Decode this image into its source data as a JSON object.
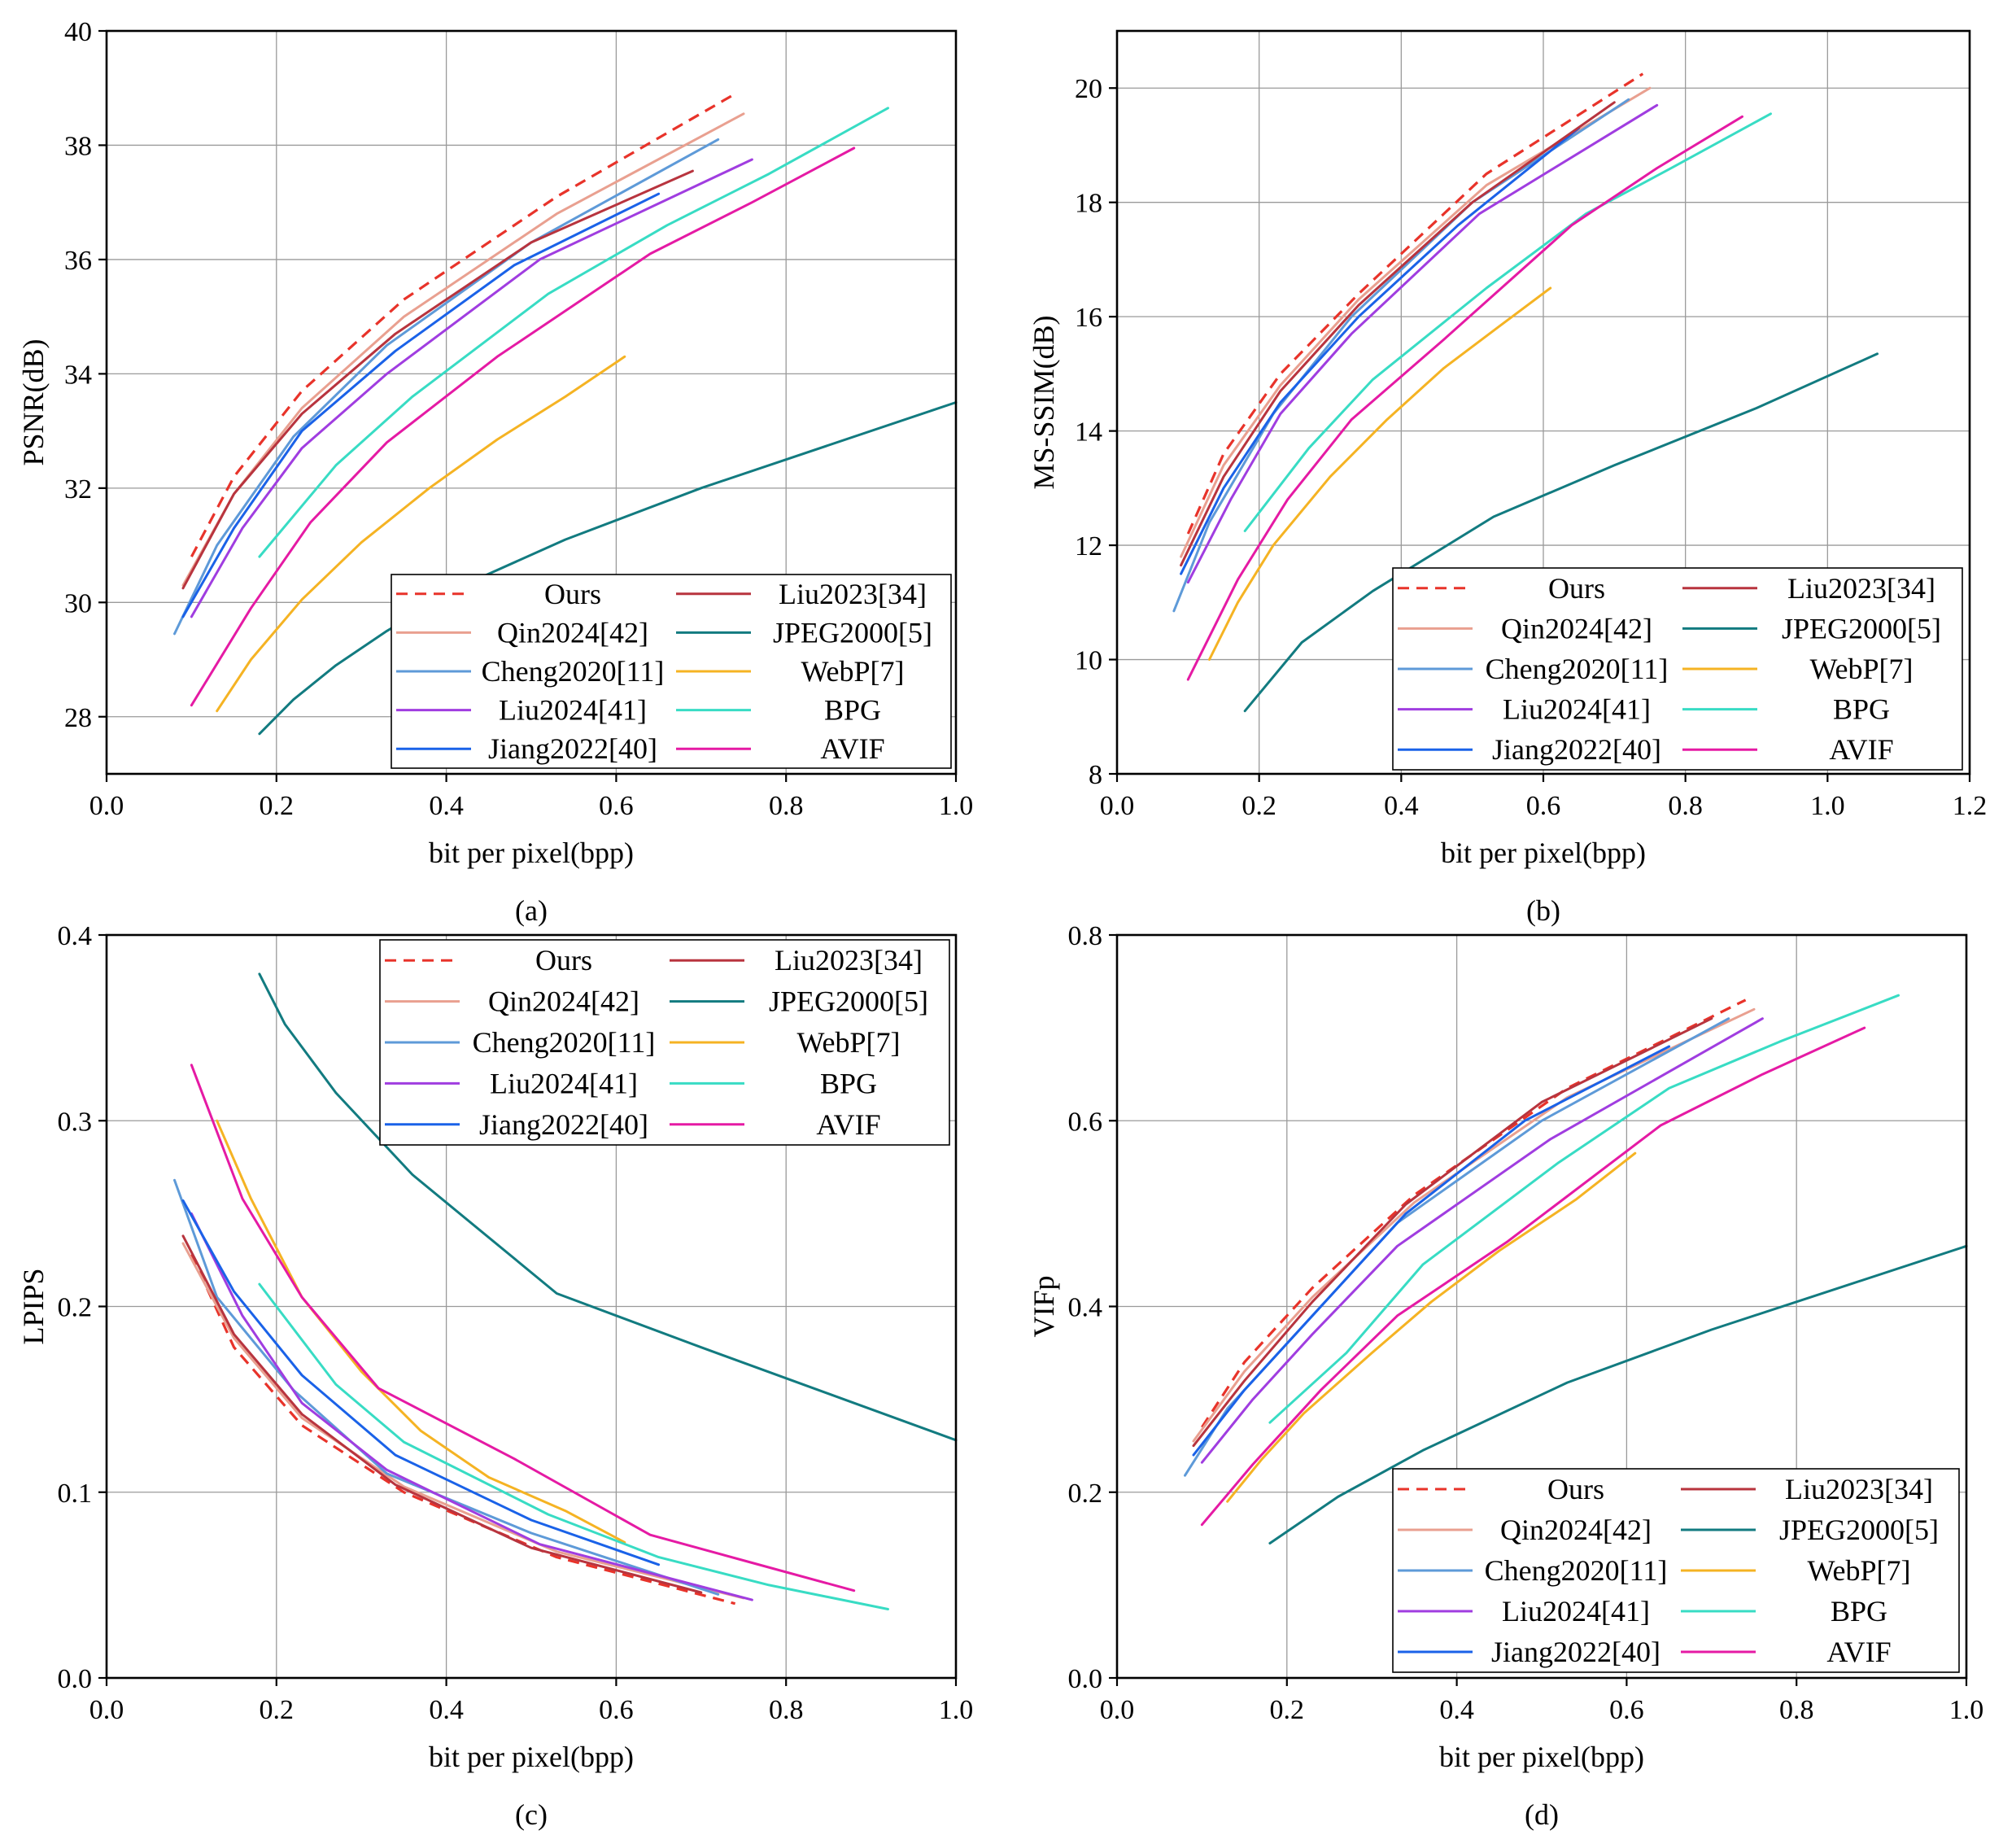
{
  "colors": {
    "Ours": "#e8332a",
    "Liu2023[34]": "#b8343e",
    "Qin2024[42]": "#e9a090",
    "JPEG2000[5]": "#127b80",
    "Cheng2020[11]": "#5e9ad8",
    "WebP[7]": "#f5b323",
    "Liu2024[41]": "#a03de0",
    "BPG": "#38dcc4",
    "Jiang2022[40]": "#1a62e8",
    "AVIF": "#e51aa4"
  },
  "chart_data": [
    {
      "id": "a",
      "type": "line",
      "panel_label": "(a)",
      "xlabel": "bit per pixel(bpp)",
      "ylabel": "PSNR(dB)",
      "xlim": [
        0.0,
        1.0
      ],
      "ylim": [
        27.0,
        40.0
      ],
      "xticks": [
        "0.0",
        "0.2",
        "0.4",
        "0.6",
        "0.8",
        "1.0"
      ],
      "yticks": [
        "28",
        "30",
        "32",
        "34",
        "36",
        "38",
        "40"
      ],
      "xtick_values": [
        0.0,
        0.2,
        0.4,
        0.6,
        0.8,
        1.0
      ],
      "ytick_values": [
        28,
        30,
        32,
        34,
        36,
        38,
        40
      ],
      "legend_position": "bottom-right",
      "series": [
        {
          "name": "Ours",
          "x": [
            0.1,
            0.15,
            0.23,
            0.35,
            0.53,
            0.74
          ],
          "y": [
            30.8,
            32.2,
            33.7,
            35.3,
            37.1,
            38.9
          ]
        },
        {
          "name": "Qin2024[42]",
          "x": [
            0.09,
            0.15,
            0.23,
            0.35,
            0.53,
            0.75
          ],
          "y": [
            30.3,
            31.9,
            33.4,
            35.0,
            36.8,
            38.55
          ]
        },
        {
          "name": "Cheng2020[11]",
          "x": [
            0.08,
            0.13,
            0.22,
            0.33,
            0.5,
            0.72
          ],
          "y": [
            29.45,
            31.0,
            32.9,
            34.5,
            36.3,
            38.1
          ]
        },
        {
          "name": "Liu2024[41]",
          "x": [
            0.1,
            0.16,
            0.23,
            0.33,
            0.51,
            0.76
          ],
          "y": [
            29.75,
            31.3,
            32.7,
            34.0,
            36.0,
            37.75
          ]
        },
        {
          "name": "Jiang2022[40]",
          "x": [
            0.09,
            0.15,
            0.23,
            0.34,
            0.48,
            0.65
          ],
          "y": [
            29.75,
            31.3,
            33.0,
            34.4,
            35.9,
            37.15
          ]
        },
        {
          "name": "Liu2023[34]",
          "x": [
            0.09,
            0.15,
            0.23,
            0.34,
            0.5,
            0.69
          ],
          "y": [
            30.25,
            31.9,
            33.3,
            34.7,
            36.3,
            37.55
          ]
        },
        {
          "name": "JPEG2000[5]",
          "x": [
            0.18,
            0.22,
            0.27,
            0.33,
            0.42,
            0.54,
            0.7,
            1.0
          ],
          "y": [
            27.7,
            28.3,
            28.9,
            29.5,
            30.3,
            31.1,
            32.0,
            33.5
          ]
        },
        {
          "name": "WebP[7]",
          "x": [
            0.13,
            0.17,
            0.23,
            0.3,
            0.38,
            0.46,
            0.54,
            0.61
          ],
          "y": [
            28.1,
            29.0,
            30.05,
            31.05,
            32.0,
            32.85,
            33.6,
            34.3
          ]
        },
        {
          "name": "BPG",
          "x": [
            0.18,
            0.27,
            0.36,
            0.52,
            0.66,
            0.78,
            0.92
          ],
          "y": [
            30.8,
            32.4,
            33.6,
            35.4,
            36.6,
            37.5,
            38.65
          ]
        },
        {
          "name": "AVIF",
          "x": [
            0.1,
            0.17,
            0.24,
            0.33,
            0.46,
            0.64,
            0.76,
            0.88
          ],
          "y": [
            28.2,
            29.9,
            31.4,
            32.8,
            34.3,
            36.1,
            37.0,
            37.95
          ]
        }
      ]
    },
    {
      "id": "b",
      "type": "line",
      "panel_label": "(b)",
      "xlabel": "bit per pixel(bpp)",
      "ylabel": "MS-SSIM(dB)",
      "xlim": [
        0.0,
        1.2
      ],
      "ylim": [
        8.0,
        21.0
      ],
      "xticks": [
        "0.0",
        "0.2",
        "0.4",
        "0.6",
        "0.8",
        "1.0",
        "1.2"
      ],
      "yticks": [
        "8",
        "10",
        "12",
        "14",
        "16",
        "18",
        "20"
      ],
      "xtick_values": [
        0.0,
        0.2,
        0.4,
        0.6,
        0.8,
        1.0,
        1.2
      ],
      "ytick_values": [
        8,
        10,
        12,
        14,
        16,
        18,
        20
      ],
      "legend_position": "bottom-right",
      "series": [
        {
          "name": "Ours",
          "x": [
            0.1,
            0.15,
            0.23,
            0.34,
            0.52,
            0.74
          ],
          "y": [
            12.2,
            13.6,
            15.0,
            16.4,
            18.5,
            20.25
          ]
        },
        {
          "name": "Qin2024[42]",
          "x": [
            0.09,
            0.15,
            0.23,
            0.34,
            0.52,
            0.75
          ],
          "y": [
            11.8,
            13.4,
            14.8,
            16.3,
            18.3,
            20.0
          ]
        },
        {
          "name": "Cheng2020[11]",
          "x": [
            0.08,
            0.13,
            0.22,
            0.33,
            0.5,
            0.72
          ],
          "y": [
            10.85,
            12.4,
            14.3,
            16.0,
            18.0,
            19.8
          ]
        },
        {
          "name": "Liu2024[41]",
          "x": [
            0.1,
            0.16,
            0.23,
            0.33,
            0.51,
            0.76
          ],
          "y": [
            11.35,
            12.8,
            14.3,
            15.7,
            17.8,
            19.7
          ]
        },
        {
          "name": "Jiang2022[40]",
          "x": [
            0.09,
            0.15,
            0.23,
            0.34,
            0.48,
            0.65
          ],
          "y": [
            11.5,
            13.0,
            14.5,
            16.0,
            17.6,
            19.3
          ]
        },
        {
          "name": "Liu2023[34]",
          "x": [
            0.09,
            0.15,
            0.23,
            0.34,
            0.5,
            0.7
          ],
          "y": [
            11.65,
            13.2,
            14.7,
            16.2,
            18.0,
            19.75
          ]
        },
        {
          "name": "JPEG2000[5]",
          "x": [
            0.18,
            0.26,
            0.36,
            0.53,
            0.7,
            0.9,
            1.07
          ],
          "y": [
            9.1,
            10.3,
            11.2,
            12.5,
            13.4,
            14.4,
            15.35
          ]
        },
        {
          "name": "WebP[7]",
          "x": [
            0.13,
            0.17,
            0.22,
            0.3,
            0.38,
            0.46,
            0.54,
            0.61
          ],
          "y": [
            10.0,
            11.0,
            12.0,
            13.2,
            14.2,
            15.1,
            15.85,
            16.5
          ]
        },
        {
          "name": "BPG",
          "x": [
            0.18,
            0.27,
            0.36,
            0.52,
            0.66,
            0.78,
            0.92
          ],
          "y": [
            12.25,
            13.7,
            14.9,
            16.5,
            17.8,
            18.6,
            19.55
          ]
        },
        {
          "name": "AVIF",
          "x": [
            0.1,
            0.17,
            0.24,
            0.33,
            0.46,
            0.64,
            0.76,
            0.88
          ],
          "y": [
            9.65,
            11.4,
            12.8,
            14.2,
            15.6,
            17.6,
            18.6,
            19.5
          ]
        }
      ]
    },
    {
      "id": "c",
      "type": "line",
      "panel_label": "(c)",
      "xlabel": "bit per pixel(bpp)",
      "ylabel": "LPIPS",
      "xlim": [
        0.0,
        1.0
      ],
      "ylim": [
        0.0,
        0.4
      ],
      "xticks": [
        "0.0",
        "0.2",
        "0.4",
        "0.6",
        "0.8",
        "1.0"
      ],
      "yticks": [
        "0.0",
        "0.1",
        "0.2",
        "0.3",
        "0.4"
      ],
      "xtick_values": [
        0.0,
        0.2,
        0.4,
        0.6,
        0.8,
        1.0
      ],
      "ytick_values": [
        0.0,
        0.1,
        0.2,
        0.3,
        0.4
      ],
      "legend_position": "top-right",
      "series": [
        {
          "name": "Ours",
          "x": [
            0.1,
            0.15,
            0.23,
            0.35,
            0.53,
            0.74
          ],
          "y": [
            0.228,
            0.178,
            0.136,
            0.1,
            0.065,
            0.04
          ]
        },
        {
          "name": "Qin2024[42]",
          "x": [
            0.09,
            0.15,
            0.23,
            0.35,
            0.53,
            0.75
          ],
          "y": [
            0.234,
            0.183,
            0.14,
            0.103,
            0.068,
            0.043
          ]
        },
        {
          "name": "Cheng2020[11]",
          "x": [
            0.08,
            0.13,
            0.22,
            0.33,
            0.5,
            0.72
          ],
          "y": [
            0.268,
            0.205,
            0.155,
            0.11,
            0.078,
            0.045
          ]
        },
        {
          "name": "Liu2024[41]",
          "x": [
            0.1,
            0.16,
            0.23,
            0.33,
            0.51,
            0.76
          ],
          "y": [
            0.25,
            0.195,
            0.148,
            0.112,
            0.072,
            0.042
          ]
        },
        {
          "name": "Jiang2022[40]",
          "x": [
            0.09,
            0.15,
            0.23,
            0.34,
            0.5,
            0.65
          ],
          "y": [
            0.257,
            0.208,
            0.163,
            0.12,
            0.085,
            0.061
          ]
        },
        {
          "name": "Liu2023[34]",
          "x": [
            0.09,
            0.15,
            0.23,
            0.34,
            0.5,
            0.7
          ],
          "y": [
            0.238,
            0.185,
            0.142,
            0.104,
            0.07,
            0.046
          ]
        },
        {
          "name": "JPEG2000[5]",
          "x": [
            0.18,
            0.21,
            0.27,
            0.36,
            0.53,
            0.7,
            1.0
          ],
          "y": [
            0.379,
            0.352,
            0.315,
            0.271,
            0.207,
            0.178,
            0.128
          ]
        },
        {
          "name": "WebP[7]",
          "x": [
            0.13,
            0.17,
            0.23,
            0.3,
            0.37,
            0.45,
            0.54,
            0.61
          ],
          "y": [
            0.3,
            0.258,
            0.205,
            0.165,
            0.133,
            0.108,
            0.09,
            0.073
          ]
        },
        {
          "name": "BPG",
          "x": [
            0.18,
            0.27,
            0.35,
            0.52,
            0.65,
            0.78,
            0.92
          ],
          "y": [
            0.212,
            0.158,
            0.127,
            0.088,
            0.065,
            0.05,
            0.037
          ]
        },
        {
          "name": "AVIF",
          "x": [
            0.1,
            0.16,
            0.23,
            0.32,
            0.48,
            0.64,
            0.76,
            0.88
          ],
          "y": [
            0.33,
            0.258,
            0.205,
            0.156,
            0.118,
            0.077,
            0.062,
            0.047
          ]
        }
      ]
    },
    {
      "id": "d",
      "type": "line",
      "panel_label": "(d)",
      "xlabel": "bit per pixel(bpp)",
      "ylabel": "VIFp",
      "xlim": [
        0.0,
        1.0
      ],
      "ylim": [
        0.0,
        0.8
      ],
      "xticks": [
        "0.0",
        "0.2",
        "0.4",
        "0.6",
        "0.8",
        "1.0"
      ],
      "yticks": [
        "0.0",
        "0.2",
        "0.4",
        "0.6",
        "0.8"
      ],
      "xtick_values": [
        0.0,
        0.2,
        0.4,
        0.6,
        0.8,
        1.0
      ],
      "ytick_values": [
        0.0,
        0.2,
        0.4,
        0.6,
        0.8
      ],
      "legend_position": "bottom-right",
      "series": [
        {
          "name": "Ours",
          "x": [
            0.1,
            0.15,
            0.23,
            0.35,
            0.53,
            0.74
          ],
          "y": [
            0.27,
            0.34,
            0.42,
            0.52,
            0.635,
            0.73
          ]
        },
        {
          "name": "Qin2024[42]",
          "x": [
            0.09,
            0.15,
            0.23,
            0.35,
            0.53,
            0.75
          ],
          "y": [
            0.255,
            0.33,
            0.41,
            0.512,
            0.625,
            0.72
          ]
        },
        {
          "name": "Cheng2020[11]",
          "x": [
            0.08,
            0.13,
            0.22,
            0.33,
            0.5,
            0.72
          ],
          "y": [
            0.218,
            0.29,
            0.38,
            0.49,
            0.6,
            0.71
          ]
        },
        {
          "name": "Liu2024[41]",
          "x": [
            0.1,
            0.16,
            0.23,
            0.33,
            0.51,
            0.76
          ],
          "y": [
            0.232,
            0.3,
            0.37,
            0.465,
            0.58,
            0.71
          ]
        },
        {
          "name": "Jiang2022[40]",
          "x": [
            0.09,
            0.15,
            0.23,
            0.34,
            0.48,
            0.65
          ],
          "y": [
            0.24,
            0.31,
            0.39,
            0.5,
            0.6,
            0.68
          ]
        },
        {
          "name": "Liu2023[34]",
          "x": [
            0.09,
            0.15,
            0.23,
            0.34,
            0.5,
            0.7
          ],
          "y": [
            0.25,
            0.32,
            0.405,
            0.51,
            0.62,
            0.71
          ]
        },
        {
          "name": "JPEG2000[5]",
          "x": [
            0.18,
            0.26,
            0.36,
            0.53,
            0.7,
            0.85,
            1.0
          ],
          "y": [
            0.145,
            0.195,
            0.245,
            0.318,
            0.375,
            0.42,
            0.465
          ]
        },
        {
          "name": "WebP[7]",
          "x": [
            0.13,
            0.17,
            0.22,
            0.3,
            0.37,
            0.45,
            0.54,
            0.61
          ],
          "y": [
            0.19,
            0.235,
            0.285,
            0.35,
            0.405,
            0.46,
            0.515,
            0.565
          ]
        },
        {
          "name": "BPG",
          "x": [
            0.18,
            0.27,
            0.36,
            0.52,
            0.65,
            0.78,
            0.92
          ],
          "y": [
            0.275,
            0.35,
            0.445,
            0.555,
            0.635,
            0.685,
            0.735
          ]
        },
        {
          "name": "AVIF",
          "x": [
            0.1,
            0.16,
            0.24,
            0.33,
            0.46,
            0.64,
            0.76,
            0.88
          ],
          "y": [
            0.165,
            0.23,
            0.31,
            0.39,
            0.47,
            0.595,
            0.65,
            0.7
          ]
        }
      ]
    }
  ]
}
